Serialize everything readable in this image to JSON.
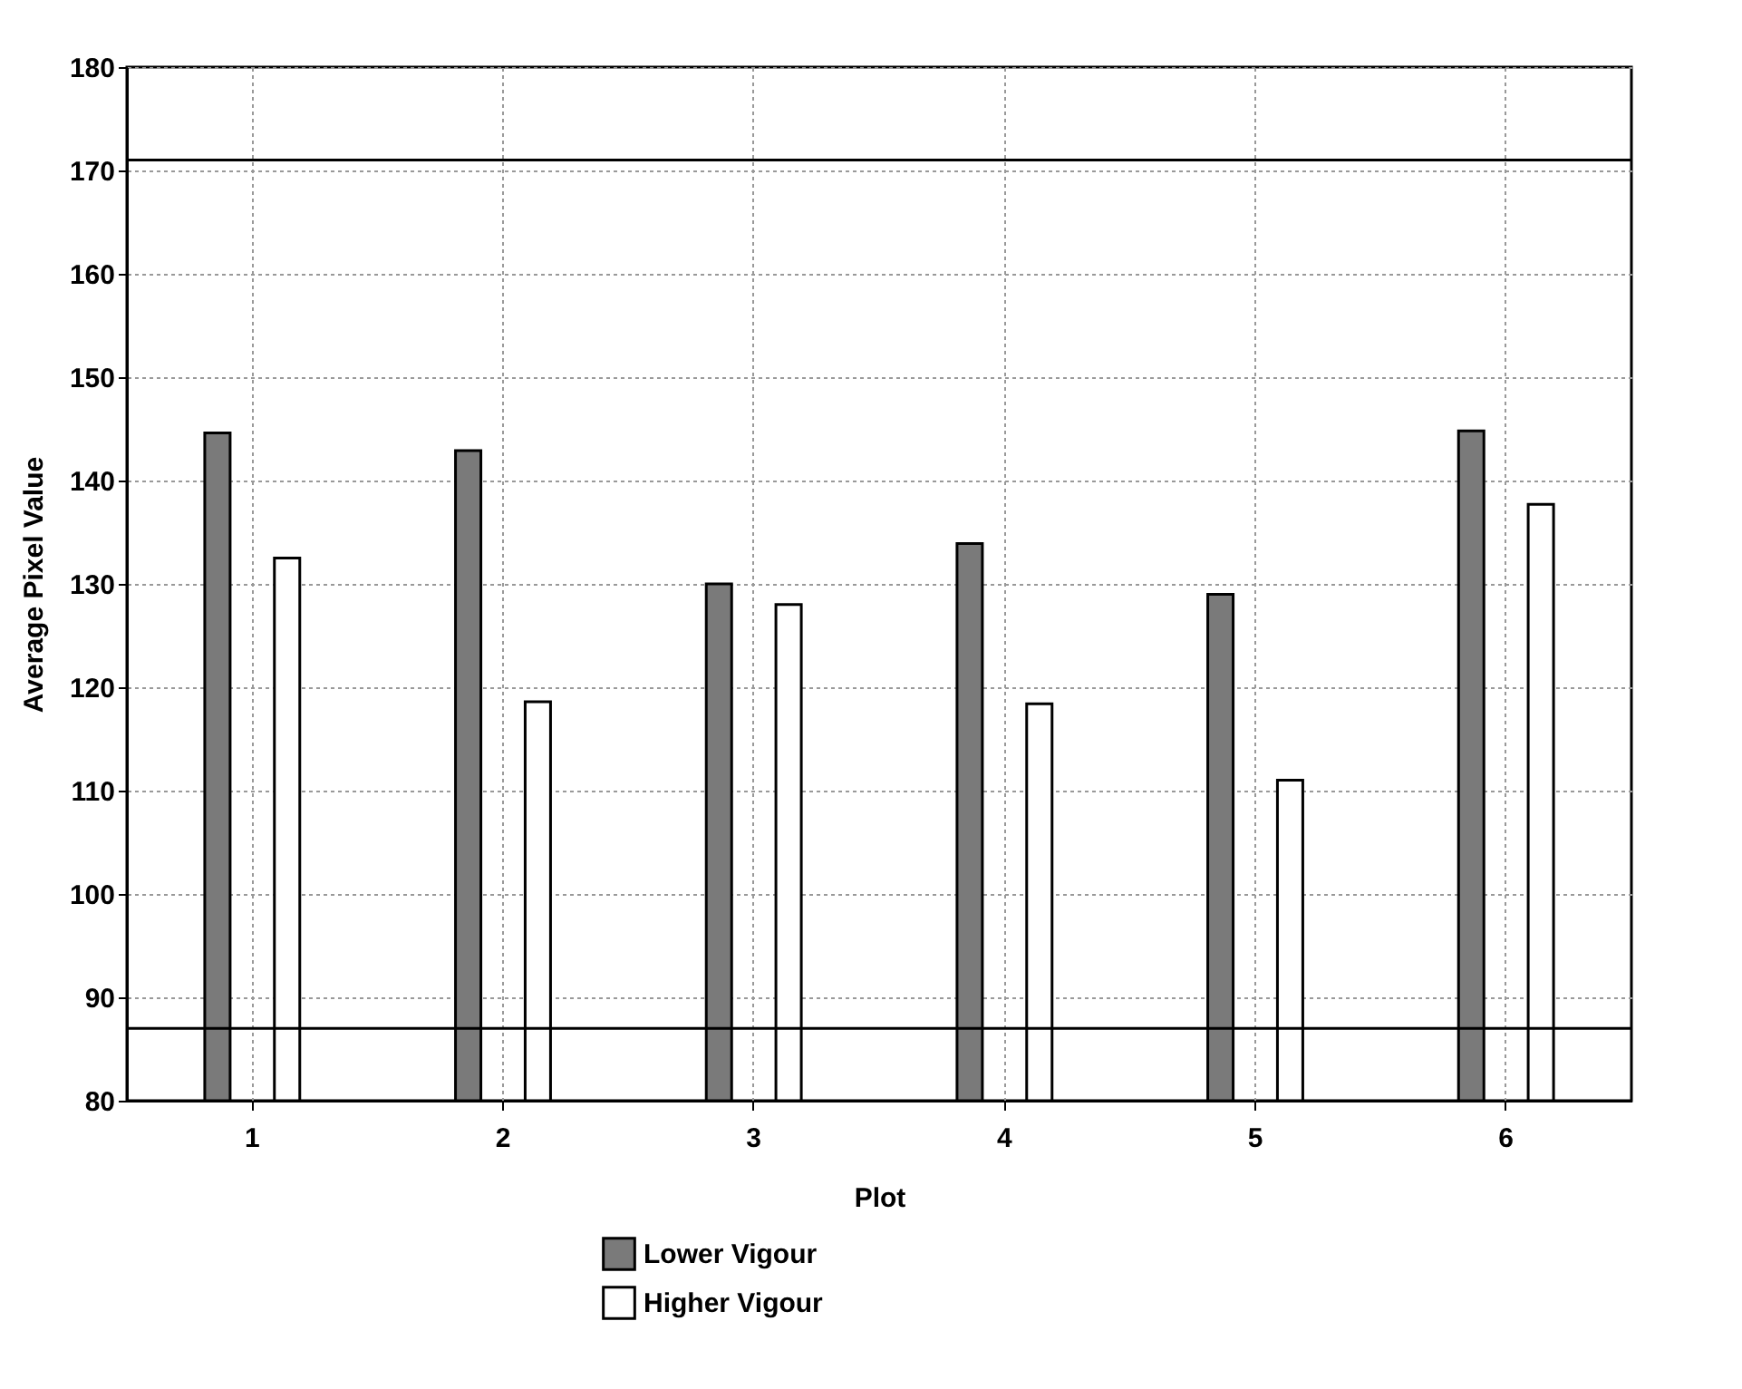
{
  "chart_data": {
    "type": "bar",
    "xlabel": "Plot",
    "ylabel": "Average Pixel Value",
    "categories": [
      "1",
      "2",
      "3",
      "4",
      "5",
      "6"
    ],
    "series": [
      {
        "name": "Lower Vigour",
        "color": "#7a7a7a",
        "values": [
          144.6,
          142.9,
          130,
          133.9,
          129,
          144.8
        ]
      },
      {
        "name": "Higher Vigour",
        "color": "#ffffff",
        "values": [
          132.5,
          118.6,
          128,
          118.4,
          111,
          137.7
        ]
      }
    ],
    "ylim": [
      80,
      180
    ],
    "yticks": [
      80,
      90,
      100,
      110,
      120,
      130,
      140,
      150,
      160,
      170,
      180
    ],
    "ref_lines": [
      {
        "axis": "y",
        "value": 171,
        "color": "#000000"
      },
      {
        "axis": "y",
        "value": 87,
        "color": "#000000"
      }
    ],
    "grid": true,
    "legend": "bottom"
  }
}
